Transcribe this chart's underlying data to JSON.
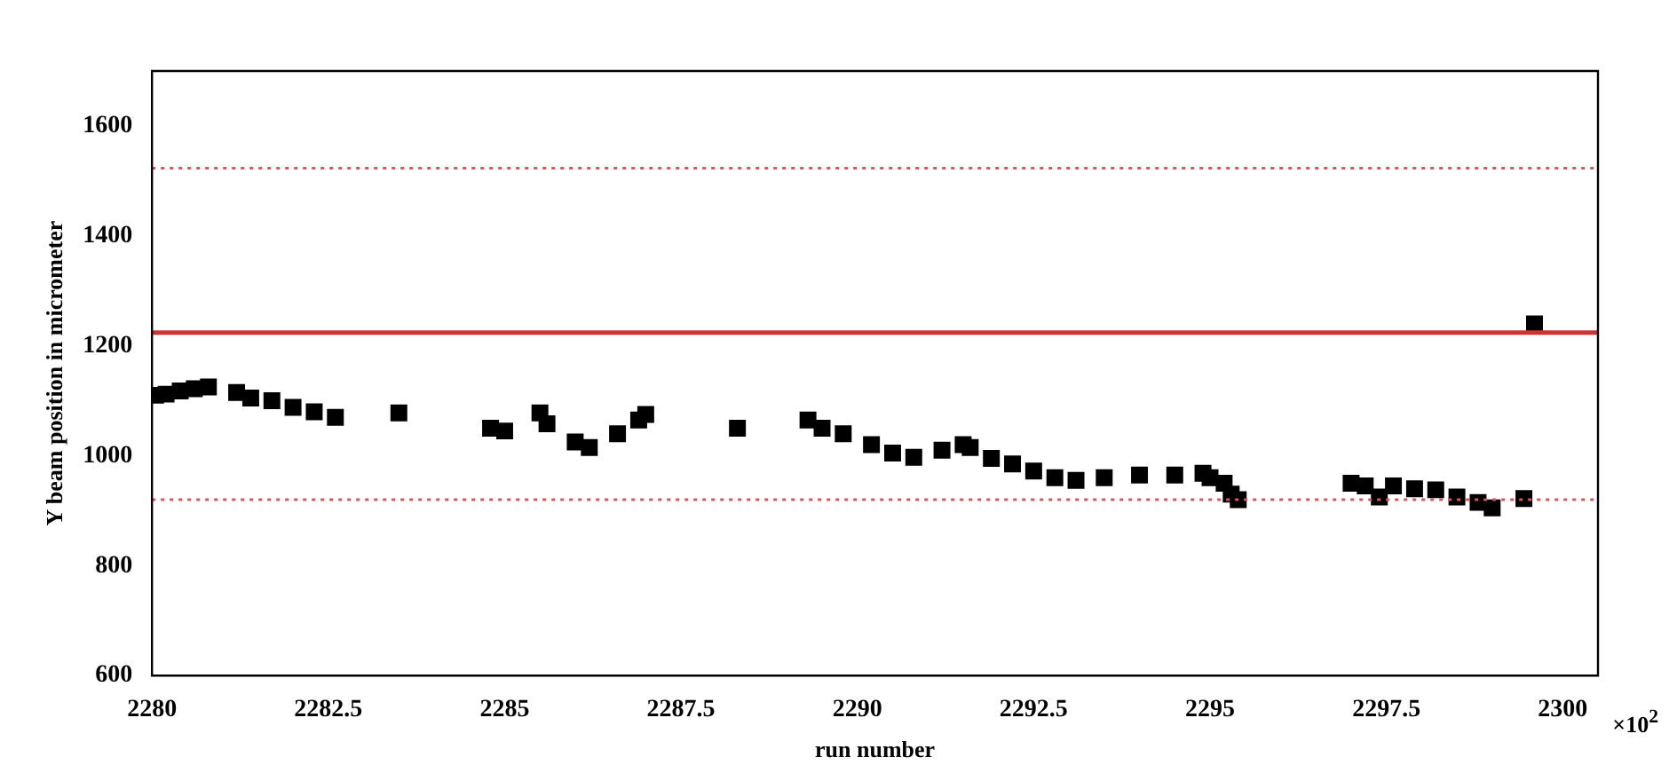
{
  "chart_data": {
    "type": "scatter",
    "xlabel": "run number",
    "ylabel": "Y beam position in micrometer",
    "annotations": [
      "×10$^{2}$"
    ],
    "xlim": [
      2280,
      2300.5
    ],
    "xticks": [
      2280,
      2282.5,
      2285,
      2287.5,
      2290,
      2292.5,
      2295,
      2297.5,
      2300
    ],
    "ylim": [
      600,
      1700
    ],
    "yticks": [
      600,
      800,
      1000,
      1200,
      1400,
      1600
    ],
    "marker": "square",
    "grid": false,
    "legend": false,
    "ref_lines": [
      {
        "axis": "y",
        "value": 1224,
        "label": null,
        "color": "#cc3333",
        "line_style": "solid"
      },
      {
        "axis": "y",
        "value": 1523,
        "label": null,
        "color": "#dd5555",
        "line_style": "dotted"
      },
      {
        "axis": "y",
        "value": 920,
        "label": null,
        "color": "#dd5555",
        "line_style": "dotted"
      }
    ],
    "series": [
      {
        "color": "#000000",
        "x": [
          2280.05,
          2280.2,
          2280.4,
          2280.6,
          2280.8,
          2281.2,
          2281.4,
          2281.7,
          2282.0,
          2282.3,
          2282.6,
          2283.5,
          2284.8,
          2285.0,
          2285.5,
          2285.6,
          2286.0,
          2286.2,
          2286.6,
          2286.9,
          2287.0,
          2288.3,
          2289.3,
          2289.5,
          2289.8,
          2290.2,
          2290.5,
          2290.8,
          2291.2,
          2291.5,
          2291.6,
          2291.9,
          2292.2,
          2292.5,
          2292.8,
          2293.1,
          2293.5,
          2294.0,
          2294.5,
          2294.9,
          2295.0,
          2295.2,
          2295.3,
          2295.4,
          2297.0,
          2297.2,
          2297.4,
          2297.6,
          2297.9,
          2298.2,
          2298.5,
          2298.8,
          2299.0,
          2299.45,
          2299.6
        ],
        "values": [
          1110,
          1112,
          1118,
          1122,
          1125,
          1115,
          1105,
          1100,
          1088,
          1080,
          1070,
          1078,
          1050,
          1045,
          1078,
          1058,
          1025,
          1015,
          1040,
          1065,
          1075,
          1050,
          1065,
          1050,
          1040,
          1020,
          1005,
          997,
          1010,
          1020,
          1015,
          995,
          985,
          972,
          960,
          955,
          960,
          965,
          965,
          968,
          960,
          950,
          930,
          920,
          950,
          945,
          925,
          945,
          940,
          938,
          925,
          915,
          905,
          922,
          1240
        ]
      }
    ]
  }
}
